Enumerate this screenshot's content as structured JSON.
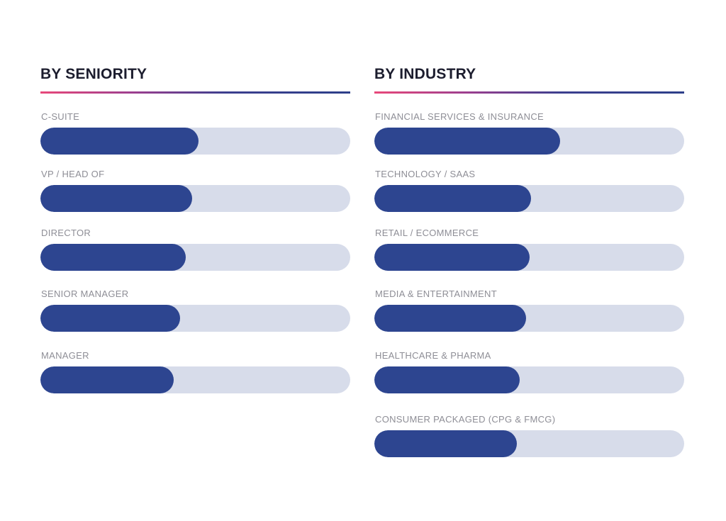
{
  "chart_data": [
    {
      "type": "bar",
      "title": "BY SENIORITY",
      "categories": [
        "C-SUITE",
        "VP / HEAD OF",
        "DIRECTOR",
        "SENIOR MANAGER",
        "MANAGER"
      ],
      "values": [
        0.51,
        0.49,
        0.47,
        0.45,
        0.43
      ],
      "xlim": [
        0,
        1
      ],
      "colors": {
        "fill": "#2d4590",
        "track": "#d7dcea"
      }
    },
    {
      "type": "bar",
      "title": "BY INDUSTRY",
      "categories": [
        "FINANCIAL SERVICES & INSURANCE",
        "TECHNOLOGY / SAAS",
        "RETAIL / ECOMMERCE",
        "MEDIA & ENTERTAINMENT",
        "HEALTHCARE & PHARMA",
        "CONSUMER PACKAGED (CPG & FMCG)"
      ],
      "values": [
        0.6,
        0.505,
        0.5,
        0.49,
        0.47,
        0.46
      ],
      "xlim": [
        0,
        1
      ],
      "colors": {
        "fill": "#2d4590",
        "track": "#d7dcea"
      }
    }
  ]
}
